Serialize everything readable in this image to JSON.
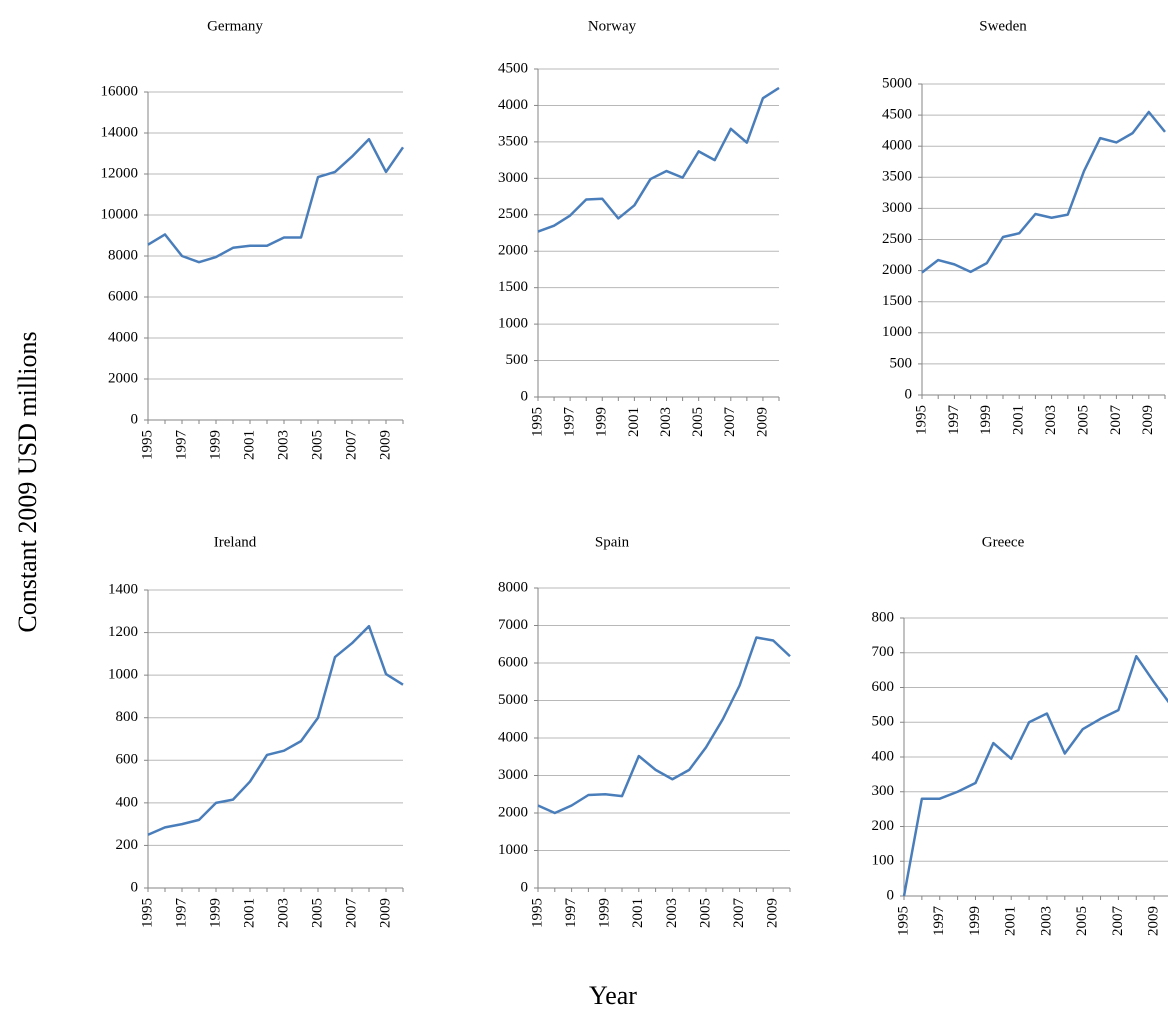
{
  "ylabel": "Constant 2009 USD millions",
  "xlabel": "Year",
  "chart_data": [
    {
      "type": "line",
      "title": "Germany",
      "color": "#4a7ebb",
      "grid": true,
      "categories": [
        "1995",
        null,
        "1997",
        null,
        "1999",
        null,
        "2001",
        null,
        "2003",
        null,
        "2005",
        null,
        "2007",
        null,
        "2009",
        null
      ],
      "values": [
        8550,
        9050,
        8000,
        7700,
        7950,
        8400,
        8500,
        8500,
        8900,
        8900,
        11850,
        12100,
        12850,
        13700,
        12100,
        13300
      ],
      "ylim": [
        0,
        16000
      ],
      "yticks": [
        0,
        2000,
        4000,
        6000,
        8000,
        10000,
        12000,
        14000,
        16000
      ]
    },
    {
      "type": "line",
      "title": "Norway",
      "color": "#4a7ebb",
      "grid": true,
      "categories": [
        "1995",
        null,
        "1997",
        null,
        "1999",
        null,
        "2001",
        null,
        "2003",
        null,
        "2005",
        null,
        "2007",
        null,
        "2009",
        null
      ],
      "values": [
        2270,
        2350,
        2490,
        2710,
        2720,
        2450,
        2630,
        2990,
        3100,
        3010,
        3370,
        3250,
        3680,
        3490,
        4100,
        4240
      ],
      "ylim": [
        0,
        4500
      ],
      "yticks": [
        0,
        500,
        1000,
        1500,
        2000,
        2500,
        3000,
        3500,
        4000,
        4500
      ]
    },
    {
      "type": "line",
      "title": "Sweden",
      "color": "#4a7ebb",
      "grid": true,
      "categories": [
        "1995",
        null,
        "1997",
        null,
        "1999",
        null,
        "2001",
        null,
        "2003",
        null,
        "2005",
        null,
        "2007",
        null,
        "2009",
        null
      ],
      "values": [
        1970,
        2170,
        2100,
        1980,
        2120,
        2540,
        2600,
        2910,
        2850,
        2900,
        3600,
        4130,
        4060,
        4210,
        4550,
        4230
      ],
      "ylim": [
        0,
        5000
      ],
      "yticks": [
        0,
        500,
        1000,
        1500,
        2000,
        2500,
        3000,
        3500,
        4000,
        4500,
        5000
      ]
    },
    {
      "type": "line",
      "title": "Ireland",
      "color": "#4a7ebb",
      "grid": true,
      "categories": [
        "1995",
        null,
        "1997",
        null,
        "1999",
        null,
        "2001",
        null,
        "2003",
        null,
        "2005",
        null,
        "2007",
        null,
        "2009",
        null
      ],
      "values": [
        250,
        285,
        300,
        320,
        400,
        415,
        500,
        625,
        645,
        690,
        800,
        1085,
        1150,
        1230,
        1005,
        955
      ],
      "ylim": [
        0,
        1400
      ],
      "yticks": [
        0,
        200,
        400,
        600,
        800,
        1000,
        1200,
        1400
      ]
    },
    {
      "type": "line",
      "title": "Spain",
      "color": "#4a7ebb",
      "grid": true,
      "categories": [
        "1995",
        null,
        "1997",
        null,
        "1999",
        null,
        "2001",
        null,
        "2003",
        null,
        "2005",
        null,
        "2007",
        null,
        "2009",
        null
      ],
      "values": [
        2200,
        2000,
        2200,
        2480,
        2500,
        2450,
        3520,
        3150,
        2900,
        3150,
        3750,
        4500,
        5400,
        6680,
        6600,
        6180
      ],
      "ylim": [
        0,
        8000
      ],
      "yticks": [
        0,
        1000,
        2000,
        3000,
        4000,
        5000,
        6000,
        7000,
        8000
      ]
    },
    {
      "type": "line",
      "title": "Greece",
      "color": "#4a7ebb",
      "grid": true,
      "categories": [
        "1995",
        null,
        "1997",
        null,
        "1999",
        null,
        "2001",
        null,
        "2003",
        null,
        "2005",
        null,
        "2007",
        null,
        "2009",
        null
      ],
      "values": [
        0,
        280,
        280,
        300,
        325,
        440,
        395,
        500,
        525,
        410,
        480,
        510,
        535,
        690,
        615,
        545
      ],
      "ylim": [
        0,
        800
      ],
      "yticks": [
        0,
        100,
        200,
        300,
        400,
        500,
        600,
        700,
        800
      ]
    }
  ]
}
